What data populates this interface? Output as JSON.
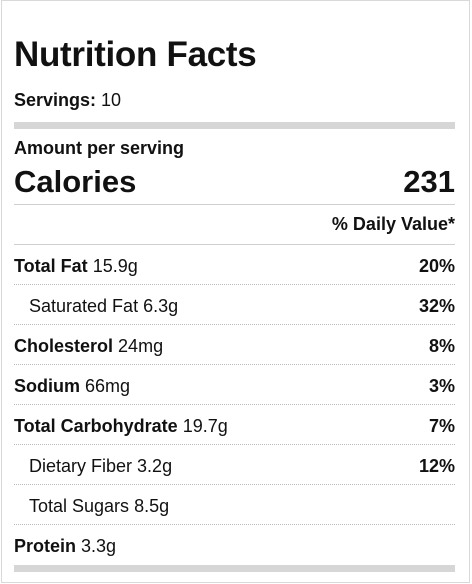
{
  "title": "Nutrition Facts",
  "servings": {
    "label": "Servings:",
    "value": "10"
  },
  "amount_per_serving": "Amount per serving",
  "calories": {
    "label": "Calories",
    "value": "231"
  },
  "daily_value_header": "% Daily Value*",
  "nutrients": [
    {
      "name": "Total Fat",
      "amount": "15.9g",
      "dv": "20%"
    },
    {
      "name": "Saturated Fat",
      "amount": "6.3g",
      "dv": "32%"
    },
    {
      "name": "Cholesterol",
      "amount": "24mg",
      "dv": "8%"
    },
    {
      "name": "Sodium",
      "amount": "66mg",
      "dv": "3%"
    },
    {
      "name": "Total Carbohydrate",
      "amount": "19.7g",
      "dv": "7%"
    },
    {
      "name": "Dietary Fiber",
      "amount": "3.2g",
      "dv": "12%"
    },
    {
      "name": "Total Sugars",
      "amount": "8.5g",
      "dv": ""
    },
    {
      "name": "Protein",
      "amount": "3.3g",
      "dv": ""
    }
  ]
}
